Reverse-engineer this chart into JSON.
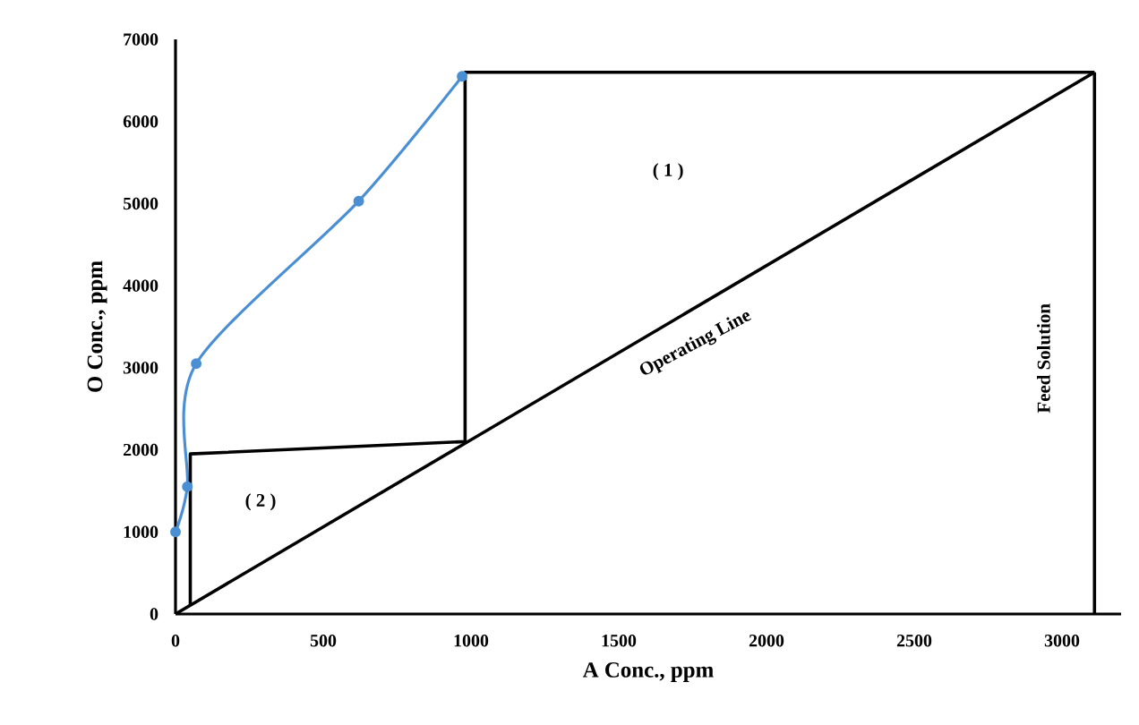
{
  "chart_data": {
    "type": "line",
    "xlabel": "A Conc., ppm",
    "ylabel": "O Conc., ppm",
    "xlim": [
      0,
      3200
    ],
    "ylim": [
      0,
      7000
    ],
    "xticks": [
      0,
      500,
      1000,
      1500,
      2000,
      2500,
      3000
    ],
    "yticks": [
      0,
      1000,
      2000,
      3000,
      4000,
      5000,
      6000,
      7000
    ],
    "series": [
      {
        "color": "#4a8fd4",
        "marker": "circle",
        "x": [
          0,
          40,
          70,
          620,
          970
        ],
        "values": [
          1000,
          1550,
          3050,
          5030,
          6550
        ]
      },
      {
        "color": "#000000",
        "marker": "none",
        "x": [
          0,
          3110
        ],
        "values": [
          0,
          6600
        ]
      },
      {
        "color": "#000000",
        "marker": "none",
        "x": [
          3110,
          980,
          980,
          50,
          50
        ],
        "values": [
          6600,
          6600,
          2100,
          1950,
          110
        ]
      },
      {
        "color": "#000000",
        "marker": "none",
        "x": [
          3110,
          3110
        ],
        "values": [
          6600,
          0
        ]
      }
    ],
    "annotations": [
      "( 1 )",
      "( 2 )",
      "Operating Line",
      "Feed Solution"
    ]
  }
}
